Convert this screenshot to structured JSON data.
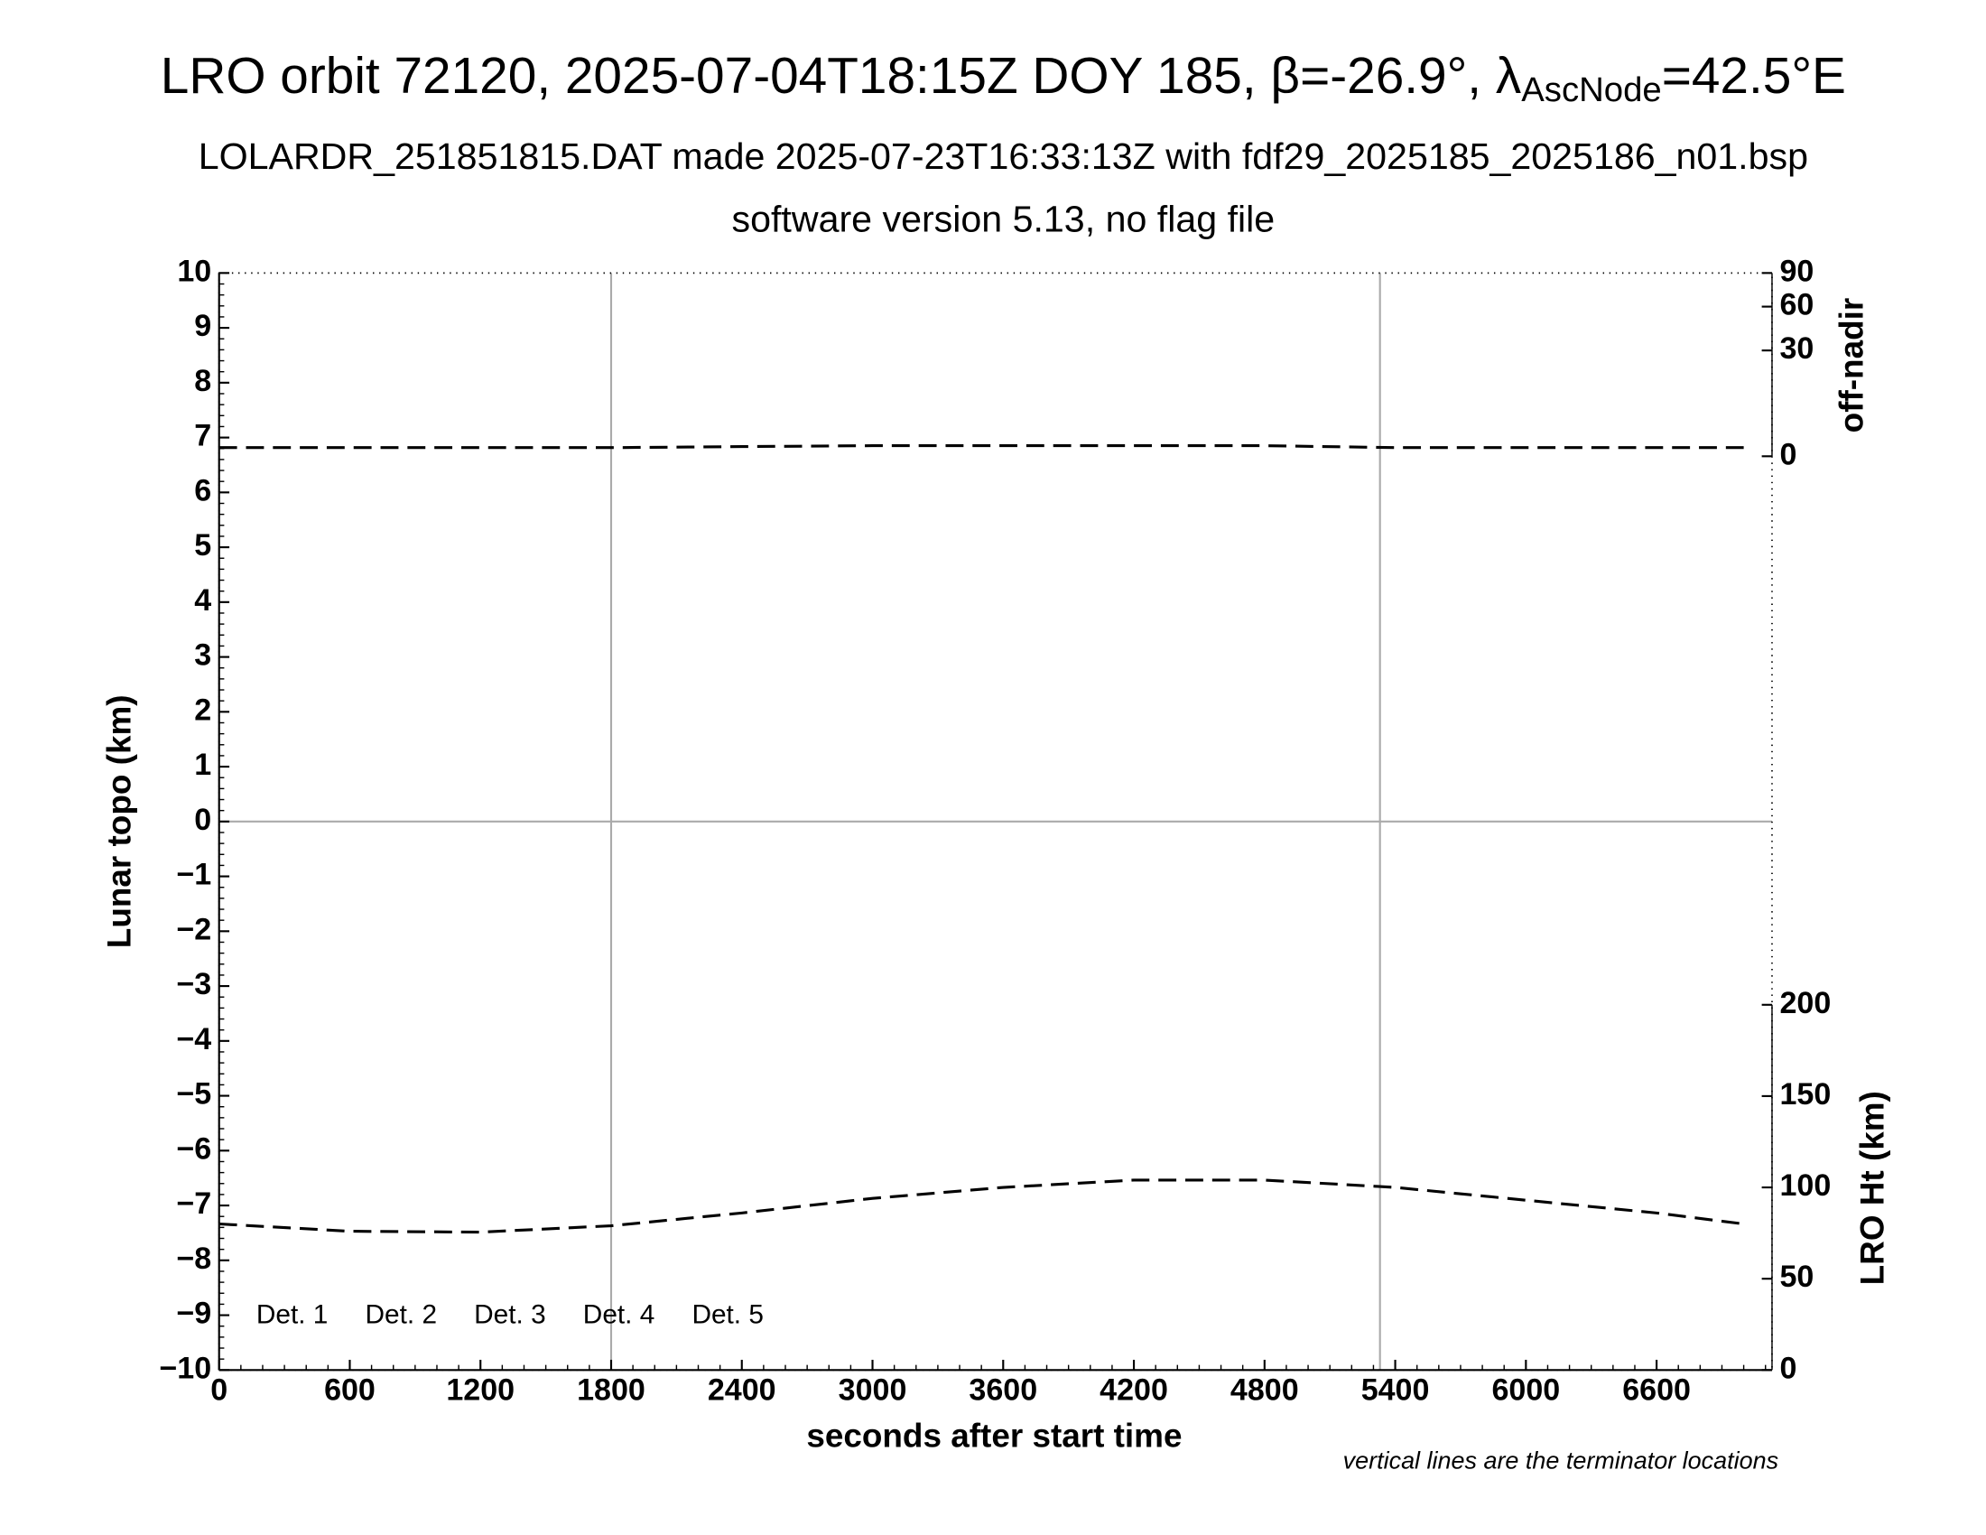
{
  "chart_data": {
    "type": "line",
    "title_parts": [
      "LRO orbit 72120, 2025-07-04T18:15Z DOY 185, β=-26.9°, λ",
      "AscNode",
      "=42.5°E"
    ],
    "subtitle": "LOLARDR_251851815.DAT made 2025-07-23T16:33:13Z with fdf29_2025185_2025186_n01.bsp",
    "subtitle2": "software version 5.13, no flag file",
    "xlabel": "seconds after start time",
    "ylabel": "Lunar topo (km)",
    "y2label": "off-nadir",
    "y3label": "LRO Ht (km)",
    "note": "vertical lines are the terminator locations",
    "xlim": [
      0,
      7130
    ],
    "xticks": [
      0,
      600,
      1200,
      1800,
      2400,
      3000,
      3600,
      4200,
      4800,
      5400,
      6000,
      6600
    ],
    "ylim": [
      -10,
      10
    ],
    "yticks": [
      {
        "value": -10,
        "label": "−10"
      },
      {
        "value": -9,
        "label": "−9"
      },
      {
        "value": -8,
        "label": "−8"
      },
      {
        "value": -7,
        "label": "−7"
      },
      {
        "value": -6,
        "label": "−6"
      },
      {
        "value": -5,
        "label": "−5"
      },
      {
        "value": -4,
        "label": "−4"
      },
      {
        "value": -3,
        "label": "−3"
      },
      {
        "value": -2,
        "label": "−2"
      },
      {
        "value": -1,
        "label": "−1"
      },
      0,
      1,
      2,
      3,
      4,
      5,
      6,
      7,
      8,
      9,
      10
    ],
    "y2lim": [
      0,
      90
    ],
    "y2scale": "sqrt",
    "y2ticks": [
      0,
      30,
      60,
      90
    ],
    "y3lim": [
      0,
      200
    ],
    "y3ticks": [
      0,
      50,
      100,
      150,
      200
    ],
    "zero_line": true,
    "terminators": [
      1800,
      5330
    ],
    "x": [
      0,
      600,
      1200,
      1800,
      2400,
      3000,
      3600,
      4200,
      4800,
      5400,
      6000,
      6600,
      7000
    ],
    "series": [
      {
        "axis": "y2",
        "color": "#000000",
        "dashed": true,
        "values": [
          0.2,
          0.2,
          0.2,
          0.2,
          0.25,
          0.3,
          0.3,
          0.3,
          0.3,
          0.2,
          0.2,
          0.2,
          0.2
        ]
      },
      {
        "axis": "y3",
        "color": "#000000",
        "dashed": true,
        "values": [
          80,
          76,
          75.5,
          79,
          86,
          94,
          100,
          104,
          104,
          100,
          93,
          86,
          80
        ]
      }
    ],
    "legend": [
      {
        "name": "Det. 1",
        "color": "#000000"
      },
      {
        "name": "Det. 2",
        "color": "#0000ff"
      },
      {
        "name": "Det. 3",
        "color": "#00ee00"
      },
      {
        "name": "Det. 4",
        "color": "#ffa500"
      },
      {
        "name": "Det. 5",
        "color": "#ff0000"
      }
    ]
  }
}
